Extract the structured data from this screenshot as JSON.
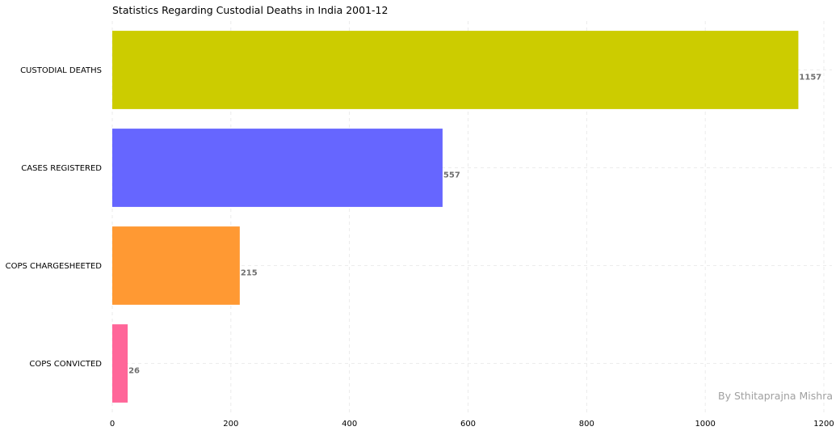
{
  "chart_data": {
    "type": "bar",
    "orientation": "horizontal",
    "title": "Statistics Regarding Custodial Deaths in India 2001-12",
    "categories": [
      "CUSTODIAL DEATHS",
      "CASES REGISTERED",
      "COPS CHARGESHEETED",
      "COPS CONVICTED"
    ],
    "values": [
      1157,
      557,
      215,
      26
    ],
    "colors": [
      "#cccc00",
      "#6666ff",
      "#ff9933",
      "#ff6699"
    ],
    "xlim": [
      0,
      1210
    ],
    "xticks": [
      0,
      200,
      400,
      600,
      800,
      1000,
      1200
    ],
    "xlabel": "",
    "ylabel": "",
    "grid": true,
    "watermark": "By Sthitaprajna Mishra"
  }
}
